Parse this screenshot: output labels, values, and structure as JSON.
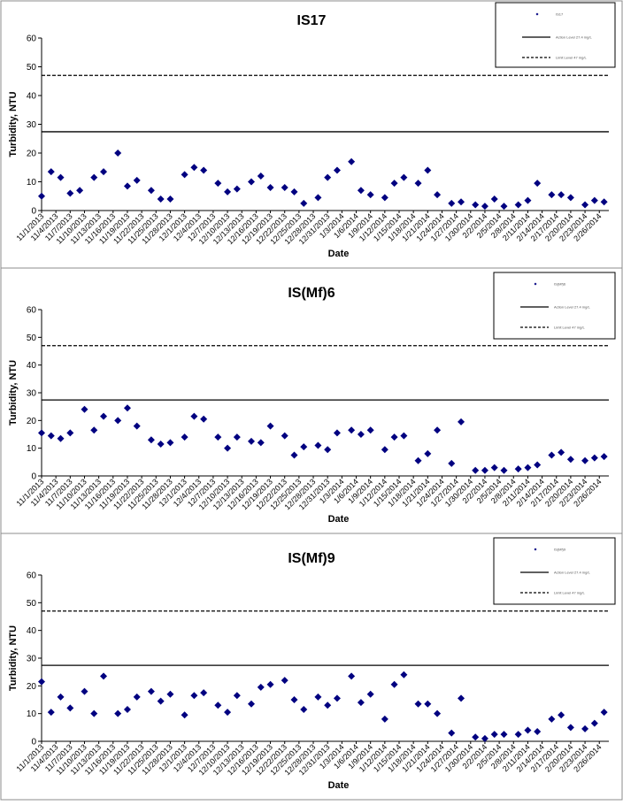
{
  "colors": {
    "marker": "#000080",
    "line": "#000000",
    "background": "#ffffff",
    "panel_border": "#8c8c8c"
  },
  "chart_data": [
    {
      "type": "scatter",
      "title": "IS17",
      "xlabel": "Date",
      "ylabel": "Turbidity, NTU",
      "ylim": [
        0,
        60
      ],
      "yticks": [
        0,
        10,
        20,
        30,
        40,
        50,
        60
      ],
      "xticks": [
        "11/1/2013",
        "11/4/2013",
        "11/7/2013",
        "11/10/2013",
        "11/13/2013",
        "11/16/2013",
        "11/19/2013",
        "11/22/2013",
        "11/25/2013",
        "11/28/2013",
        "12/1/2013",
        "12/4/2013",
        "12/7/2013",
        "12/10/2013",
        "12/13/2013",
        "12/16/2013",
        "12/19/2013",
        "12/22/2013",
        "12/25/2013",
        "12/28/2013",
        "12/31/2013",
        "1/3/2014",
        "1/6/2014",
        "1/9/2014",
        "1/12/2014",
        "1/15/2014",
        "1/18/2014",
        "1/21/2014",
        "1/24/2014",
        "1/27/2014",
        "1/30/2014",
        "2/2/2014",
        "2/5/2014",
        "2/8/2014",
        "2/11/2014",
        "2/14/2014",
        "2/17/2014",
        "2/20/2014",
        "2/23/2014",
        "2/26/2014"
      ],
      "legend": [
        "IS17",
        "Action Level 27.4 mg/L",
        "Limit Level 47 mg/L"
      ],
      "legend_position": "top-right",
      "reference_lines": [
        {
          "name": "Action Level",
          "y": 27.4,
          "style": "solid"
        },
        {
          "name": "Limit Level",
          "y": 47,
          "style": "dashed"
        }
      ],
      "series": [
        {
          "name": "IS17",
          "x": [
            "11/1/2013",
            "11/3/2013",
            "11/5/2013",
            "11/7/2013",
            "11/9/2013",
            "11/12/2013",
            "11/14/2013",
            "11/17/2013",
            "11/19/2013",
            "11/21/2013",
            "11/24/2013",
            "11/26/2013",
            "11/28/2013",
            "12/1/2013",
            "12/3/2013",
            "12/5/2013",
            "12/8/2013",
            "12/10/2013",
            "12/12/2013",
            "12/15/2013",
            "12/17/2013",
            "12/19/2013",
            "12/22/2013",
            "12/24/2013",
            "12/26/2013",
            "12/29/2013",
            "12/31/2013",
            "1/2/2014",
            "1/5/2014",
            "1/7/2014",
            "1/9/2014",
            "1/12/2014",
            "1/14/2014",
            "1/16/2014",
            "1/19/2014",
            "1/21/2014",
            "1/23/2014",
            "1/26/2014",
            "1/28/2014",
            "1/31/2014",
            "2/2/2014",
            "2/4/2014",
            "2/6/2014",
            "2/9/2014",
            "2/11/2014",
            "2/13/2014",
            "2/16/2014",
            "2/18/2014",
            "2/20/2014",
            "2/23/2014",
            "2/25/2014",
            "2/27/2014"
          ],
          "y": [
            5,
            13.5,
            11.5,
            6,
            7,
            11.5,
            13.5,
            20,
            8.5,
            10.5,
            7,
            4,
            4,
            12.5,
            15,
            14,
            9.5,
            6.5,
            7.5,
            10,
            12,
            8,
            8,
            6.5,
            2.5,
            4.5,
            11.5,
            14,
            17,
            7,
            5.5,
            4.5,
            9.5,
            11.5,
            9.5,
            14,
            5.5,
            2.5,
            3,
            2,
            1.5,
            4,
            1.5,
            2,
            3.5,
            9.5,
            5.5,
            5.5,
            4.5,
            2,
            3.5,
            3
          ]
        }
      ]
    },
    {
      "type": "scatter",
      "title": "IS(Mf)6",
      "xlabel": "Date",
      "ylabel": "Turbidity, NTU",
      "ylim": [
        0,
        60
      ],
      "yticks": [
        0,
        10,
        20,
        30,
        40,
        50,
        60
      ],
      "xticks": [
        "11/1/2013",
        "11/4/2013",
        "11/7/2013",
        "11/10/2013",
        "11/13/2013",
        "11/16/2013",
        "11/19/2013",
        "11/22/2013",
        "11/25/2013",
        "11/28/2013",
        "12/1/2013",
        "12/4/2013",
        "12/7/2013",
        "12/10/2013",
        "12/13/2013",
        "12/16/2013",
        "12/19/2013",
        "12/22/2013",
        "12/25/2013",
        "12/28/2013",
        "12/31/2013",
        "1/3/2014",
        "1/6/2014",
        "1/9/2014",
        "1/12/2014",
        "1/15/2014",
        "1/18/2014",
        "1/21/2014",
        "1/24/2014",
        "1/27/2014",
        "1/30/2014",
        "2/2/2014",
        "2/5/2014",
        "2/8/2014",
        "2/11/2014",
        "2/14/2014",
        "2/17/2014",
        "2/20/2014",
        "2/23/2014",
        "2/26/2014"
      ],
      "legend": [
        "IS(Mf)6",
        "Action Level 27.4 mg/L",
        "Limit Level 47 mg/L"
      ],
      "legend_position": "top-right",
      "reference_lines": [
        {
          "name": "Action Level",
          "y": 27.4,
          "style": "solid"
        },
        {
          "name": "Limit Level",
          "y": 47,
          "style": "dashed"
        }
      ],
      "series": [
        {
          "name": "IS(Mf)6",
          "x": [
            "11/1/2013",
            "11/3/2013",
            "11/5/2013",
            "11/7/2013",
            "11/10/2013",
            "11/12/2013",
            "11/14/2013",
            "11/17/2013",
            "11/19/2013",
            "11/21/2013",
            "11/24/2013",
            "11/26/2013",
            "11/28/2013",
            "12/1/2013",
            "12/3/2013",
            "12/5/2013",
            "12/8/2013",
            "12/10/2013",
            "12/12/2013",
            "12/15/2013",
            "12/17/2013",
            "12/19/2013",
            "12/22/2013",
            "12/24/2013",
            "12/26/2013",
            "12/29/2013",
            "12/31/2013",
            "1/2/2014",
            "1/5/2014",
            "1/7/2014",
            "1/9/2014",
            "1/12/2014",
            "1/14/2014",
            "1/16/2014",
            "1/19/2014",
            "1/21/2014",
            "1/23/2014",
            "1/26/2014",
            "1/28/2014",
            "1/31/2014",
            "2/2/2014",
            "2/4/2014",
            "2/6/2014",
            "2/9/2014",
            "2/11/2014",
            "2/13/2014",
            "2/16/2014",
            "2/18/2014",
            "2/20/2014",
            "2/23/2014",
            "2/25/2014",
            "2/27/2014"
          ],
          "y": [
            15.5,
            14.5,
            13.5,
            15.5,
            24,
            16.5,
            21.5,
            20,
            24.5,
            18,
            13,
            11.5,
            12,
            14,
            21.5,
            20.5,
            14,
            10,
            14,
            12.5,
            12,
            18,
            14.5,
            7.5,
            10.5,
            11,
            9.5,
            15.5,
            16.5,
            15,
            16.5,
            9.5,
            14,
            14.5,
            5.5,
            8,
            16.5,
            4.5,
            19.5,
            2,
            2,
            3,
            2,
            2.5,
            3,
            4,
            7.5,
            8.5,
            6,
            5.5,
            6.5,
            7
          ]
        }
      ]
    },
    {
      "type": "scatter",
      "title": "IS(Mf)9",
      "xlabel": "Date",
      "ylabel": "Turbidity, NTU",
      "ylim": [
        0,
        60
      ],
      "yticks": [
        0,
        10,
        20,
        30,
        40,
        50,
        60
      ],
      "xticks": [
        "11/1/2013",
        "11/4/2013",
        "11/7/2013",
        "11/10/2013",
        "11/13/2013",
        "11/16/2013",
        "11/19/2013",
        "11/22/2013",
        "11/25/2013",
        "11/28/2013",
        "12/1/2013",
        "12/4/2013",
        "12/7/2013",
        "12/10/2013",
        "12/13/2013",
        "12/16/2013",
        "12/19/2013",
        "12/22/2013",
        "12/25/2013",
        "12/28/2013",
        "12/31/2013",
        "1/3/2014",
        "1/6/2014",
        "1/9/2014",
        "1/12/2014",
        "1/15/2014",
        "1/18/2014",
        "1/21/2014",
        "1/24/2014",
        "1/27/2014",
        "1/30/2014",
        "2/2/2014",
        "2/5/2014",
        "2/8/2014",
        "2/11/2014",
        "2/14/2014",
        "2/17/2014",
        "2/20/2014",
        "2/23/2014",
        "2/26/2014"
      ],
      "legend": [
        "IS(Mf)9",
        "Action Level 27.4 mg/L",
        "Limit Level 47 mg/L"
      ],
      "legend_position": "top-right",
      "reference_lines": [
        {
          "name": "Action Level",
          "y": 27.4,
          "style": "solid"
        },
        {
          "name": "Limit Level",
          "y": 47,
          "style": "dashed"
        }
      ],
      "series": [
        {
          "name": "IS(Mf)9",
          "x": [
            "11/1/2013",
            "11/3/2013",
            "11/5/2013",
            "11/7/2013",
            "11/10/2013",
            "11/12/2013",
            "11/14/2013",
            "11/17/2013",
            "11/19/2013",
            "11/21/2013",
            "11/24/2013",
            "11/26/2013",
            "11/28/2013",
            "12/1/2013",
            "12/3/2013",
            "12/5/2013",
            "12/8/2013",
            "12/10/2013",
            "12/12/2013",
            "12/15/2013",
            "12/17/2013",
            "12/19/2013",
            "12/22/2013",
            "12/24/2013",
            "12/26/2013",
            "12/29/2013",
            "12/31/2013",
            "1/2/2014",
            "1/5/2014",
            "1/7/2014",
            "1/9/2014",
            "1/12/2014",
            "1/14/2014",
            "1/16/2014",
            "1/19/2014",
            "1/21/2014",
            "1/23/2014",
            "1/26/2014",
            "1/28/2014",
            "1/31/2014",
            "2/2/2014",
            "2/4/2014",
            "2/6/2014",
            "2/9/2014",
            "2/11/2014",
            "2/13/2014",
            "2/16/2014",
            "2/18/2014",
            "2/20/2014",
            "2/23/2014",
            "2/25/2014",
            "2/27/2014"
          ],
          "y": [
            21.5,
            10.5,
            16,
            12,
            18,
            10,
            23.5,
            10,
            11.5,
            16,
            18,
            14.5,
            17,
            9.5,
            16.5,
            17.5,
            13,
            10.5,
            16.5,
            13.5,
            19.5,
            20.5,
            22,
            15,
            11.5,
            16,
            13,
            15.5,
            23.5,
            14,
            17,
            8,
            20.5,
            24,
            13.5,
            13.5,
            10,
            3,
            15.5,
            1.5,
            1,
            2.5,
            2.5,
            2.5,
            4,
            3.5,
            8,
            9.5,
            5,
            4.5,
            6.5,
            10.5
          ]
        }
      ]
    }
  ]
}
